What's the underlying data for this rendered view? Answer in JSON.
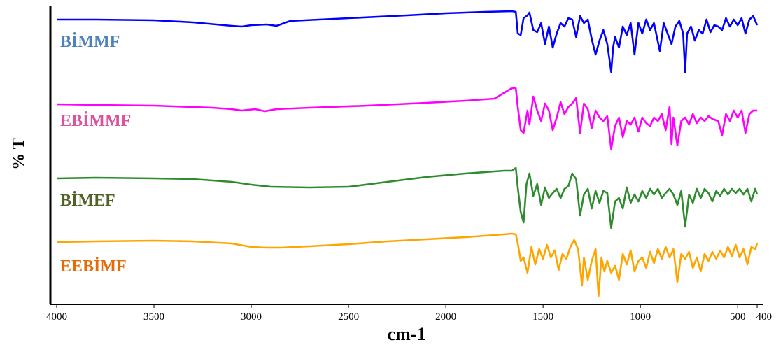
{
  "chart_data": {
    "type": "line",
    "title": "",
    "xlabel": "cm-1",
    "ylabel": "% T",
    "xlim": [
      4000,
      400
    ],
    "x_ticks": [
      4000,
      3500,
      3000,
      2500,
      2000,
      1500,
      1000,
      500,
      400
    ],
    "y_ticks_labeled": false,
    "grid": false,
    "legend": "inline labels at left",
    "series": [
      {
        "name": "BİMMF",
        "label_color": "#4f81bd",
        "line_color": "#0000ff",
        "points": [
          [
            4000,
            20
          ],
          [
            3800,
            20
          ],
          [
            3500,
            21
          ],
          [
            3300,
            24
          ],
          [
            3100,
            29
          ],
          [
            3050,
            30
          ],
          [
            3000,
            28
          ],
          [
            2920,
            27
          ],
          [
            2870,
            29
          ],
          [
            2800,
            22
          ],
          [
            2500,
            18
          ],
          [
            2200,
            14
          ],
          [
            2000,
            11
          ],
          [
            1800,
            9
          ],
          [
            1660,
            8
          ],
          [
            1640,
            9
          ],
          [
            1630,
            40
          ],
          [
            1615,
            42
          ],
          [
            1600,
            18
          ],
          [
            1580,
            14
          ],
          [
            1570,
            10
          ],
          [
            1550,
            35
          ],
          [
            1530,
            38
          ],
          [
            1510,
            25
          ],
          [
            1490,
            55
          ],
          [
            1470,
            30
          ],
          [
            1450,
            60
          ],
          [
            1430,
            40
          ],
          [
            1410,
            25
          ],
          [
            1390,
            30
          ],
          [
            1370,
            18
          ],
          [
            1350,
            20
          ],
          [
            1330,
            45
          ],
          [
            1310,
            15
          ],
          [
            1290,
            25
          ],
          [
            1270,
            20
          ],
          [
            1250,
            48
          ],
          [
            1230,
            70
          ],
          [
            1210,
            50
          ],
          [
            1190,
            35
          ],
          [
            1170,
            55
          ],
          [
            1150,
            95
          ],
          [
            1140,
            60
          ],
          [
            1130,
            45
          ],
          [
            1110,
            60
          ],
          [
            1090,
            30
          ],
          [
            1070,
            42
          ],
          [
            1050,
            25
          ],
          [
            1030,
            70
          ],
          [
            1010,
            25
          ],
          [
            990,
            40
          ],
          [
            970,
            20
          ],
          [
            950,
            35
          ],
          [
            930,
            25
          ],
          [
            900,
            65
          ],
          [
            880,
            25
          ],
          [
            860,
            40
          ],
          [
            840,
            55
          ],
          [
            820,
            30
          ],
          [
            800,
            22
          ],
          [
            780,
            40
          ],
          [
            770,
            95
          ],
          [
            760,
            40
          ],
          [
            740,
            30
          ],
          [
            720,
            50
          ],
          [
            700,
            35
          ],
          [
            680,
            40
          ],
          [
            660,
            20
          ],
          [
            640,
            38
          ],
          [
            620,
            28
          ],
          [
            600,
            30
          ],
          [
            580,
            35
          ],
          [
            560,
            18
          ],
          [
            540,
            30
          ],
          [
            520,
            20
          ],
          [
            500,
            28
          ],
          [
            480,
            18
          ],
          [
            460,
            40
          ],
          [
            440,
            20
          ],
          [
            420,
            15
          ],
          [
            400,
            28
          ]
        ]
      },
      {
        "name": "EBİMMF",
        "label_color": "#d9539f",
        "line_color": "#ff00ff",
        "points": [
          [
            4000,
            141
          ],
          [
            3800,
            142
          ],
          [
            3500,
            143
          ],
          [
            3200,
            146
          ],
          [
            3100,
            148
          ],
          [
            3050,
            150
          ],
          [
            2980,
            148
          ],
          [
            2930,
            151
          ],
          [
            2870,
            148
          ],
          [
            2700,
            146
          ],
          [
            2400,
            143
          ],
          [
            2100,
            139
          ],
          [
            1900,
            136
          ],
          [
            1750,
            133
          ],
          [
            1660,
            118
          ],
          [
            1640,
            118
          ],
          [
            1630,
            145
          ],
          [
            1615,
            178
          ],
          [
            1600,
            182
          ],
          [
            1580,
            150
          ],
          [
            1570,
            170
          ],
          [
            1550,
            130
          ],
          [
            1530,
            150
          ],
          [
            1510,
            165
          ],
          [
            1490,
            140
          ],
          [
            1470,
            150
          ],
          [
            1450,
            178
          ],
          [
            1430,
            160
          ],
          [
            1410,
            138
          ],
          [
            1390,
            155
          ],
          [
            1370,
            145
          ],
          [
            1350,
            140
          ],
          [
            1330,
            132
          ],
          [
            1310,
            182
          ],
          [
            1290,
            140
          ],
          [
            1270,
            148
          ],
          [
            1250,
            175
          ],
          [
            1230,
            150
          ],
          [
            1210,
            160
          ],
          [
            1190,
            165
          ],
          [
            1170,
            158
          ],
          [
            1150,
            205
          ],
          [
            1130,
            172
          ],
          [
            1110,
            160
          ],
          [
            1090,
            188
          ],
          [
            1070,
            165
          ],
          [
            1050,
            170
          ],
          [
            1030,
            160
          ],
          [
            1010,
            180
          ],
          [
            990,
            160
          ],
          [
            970,
            168
          ],
          [
            950,
            172
          ],
          [
            930,
            160
          ],
          [
            910,
            165
          ],
          [
            890,
            155
          ],
          [
            870,
            178
          ],
          [
            850,
            145
          ],
          [
            840,
            198
          ],
          [
            830,
            160
          ],
          [
            810,
            200
          ],
          [
            790,
            165
          ],
          [
            770,
            160
          ],
          [
            750,
            170
          ],
          [
            730,
            155
          ],
          [
            710,
            168
          ],
          [
            690,
            160
          ],
          [
            670,
            165
          ],
          [
            650,
            158
          ],
          [
            630,
            162
          ],
          [
            600,
            165
          ],
          [
            580,
            185
          ],
          [
            560,
            155
          ],
          [
            540,
            165
          ],
          [
            520,
            150
          ],
          [
            500,
            160
          ],
          [
            480,
            150
          ],
          [
            460,
            182
          ],
          [
            440,
            155
          ],
          [
            420,
            150
          ],
          [
            400,
            150
          ]
        ]
      },
      {
        "name": "BİMEF",
        "label_color": "#4f6228",
        "line_color": "#2e8b2e",
        "points": [
          [
            4000,
            247
          ],
          [
            3800,
            246
          ],
          [
            3500,
            247
          ],
          [
            3300,
            248
          ],
          [
            3100,
            252
          ],
          [
            3000,
            256
          ],
          [
            2900,
            259
          ],
          [
            2700,
            260
          ],
          [
            2500,
            259
          ],
          [
            2300,
            252
          ],
          [
            2100,
            245
          ],
          [
            1900,
            240
          ],
          [
            1700,
            236
          ],
          [
            1660,
            236
          ],
          [
            1640,
            232
          ],
          [
            1630,
            260
          ],
          [
            1615,
            295
          ],
          [
            1600,
            310
          ],
          [
            1585,
            255
          ],
          [
            1570,
            240
          ],
          [
            1550,
            272
          ],
          [
            1530,
            255
          ],
          [
            1510,
            285
          ],
          [
            1490,
            260
          ],
          [
            1470,
            275
          ],
          [
            1450,
            268
          ],
          [
            1430,
            262
          ],
          [
            1410,
            275
          ],
          [
            1390,
            262
          ],
          [
            1370,
            258
          ],
          [
            1350,
            240
          ],
          [
            1330,
            248
          ],
          [
            1310,
            300
          ],
          [
            1290,
            270
          ],
          [
            1270,
            262
          ],
          [
            1250,
            290
          ],
          [
            1230,
            265
          ],
          [
            1210,
            282
          ],
          [
            1190,
            265
          ],
          [
            1170,
            268
          ],
          [
            1150,
            318
          ],
          [
            1130,
            280
          ],
          [
            1110,
            275
          ],
          [
            1090,
            290
          ],
          [
            1070,
            260
          ],
          [
            1050,
            282
          ],
          [
            1030,
            270
          ],
          [
            1010,
            280
          ],
          [
            990,
            265
          ],
          [
            970,
            275
          ],
          [
            950,
            262
          ],
          [
            930,
            270
          ],
          [
            910,
            262
          ],
          [
            890,
            275
          ],
          [
            870,
            268
          ],
          [
            850,
            262
          ],
          [
            830,
            270
          ],
          [
            810,
            285
          ],
          [
            790,
            265
          ],
          [
            770,
            316
          ],
          [
            750,
            270
          ],
          [
            730,
            282
          ],
          [
            710,
            262
          ],
          [
            690,
            275
          ],
          [
            670,
            262
          ],
          [
            650,
            268
          ],
          [
            630,
            280
          ],
          [
            610,
            265
          ],
          [
            590,
            272
          ],
          [
            570,
            262
          ],
          [
            550,
            270
          ],
          [
            530,
            262
          ],
          [
            510,
            268
          ],
          [
            490,
            262
          ],
          [
            470,
            270
          ],
          [
            450,
            262
          ],
          [
            430,
            280
          ],
          [
            410,
            262
          ],
          [
            400,
            270
          ]
        ]
      },
      {
        "name": "EEBİMF",
        "label_color": "#e36c09",
        "line_color": "#ffa500",
        "points": [
          [
            4000,
            338
          ],
          [
            3800,
            337
          ],
          [
            3500,
            336
          ],
          [
            3300,
            337
          ],
          [
            3100,
            340
          ],
          [
            3000,
            345
          ],
          [
            2920,
            346
          ],
          [
            2850,
            346
          ],
          [
            2700,
            344
          ],
          [
            2500,
            341
          ],
          [
            2300,
            337
          ],
          [
            2100,
            334
          ],
          [
            1900,
            331
          ],
          [
            1750,
            328
          ],
          [
            1660,
            326
          ],
          [
            1640,
            327
          ],
          [
            1630,
            340
          ],
          [
            1615,
            365
          ],
          [
            1600,
            360
          ],
          [
            1580,
            382
          ],
          [
            1560,
            345
          ],
          [
            1540,
            370
          ],
          [
            1520,
            348
          ],
          [
            1500,
            362
          ],
          [
            1480,
            342
          ],
          [
            1460,
            360
          ],
          [
            1440,
            350
          ],
          [
            1420,
            378
          ],
          [
            1400,
            355
          ],
          [
            1380,
            362
          ],
          [
            1360,
            345
          ],
          [
            1340,
            335
          ],
          [
            1320,
            348
          ],
          [
            1300,
            400
          ],
          [
            1290,
            360
          ],
          [
            1270,
            392
          ],
          [
            1250,
            365
          ],
          [
            1230,
            348
          ],
          [
            1215,
            415
          ],
          [
            1200,
            360
          ],
          [
            1185,
            380
          ],
          [
            1170,
            365
          ],
          [
            1150,
            382
          ],
          [
            1130,
            372
          ],
          [
            1110,
            392
          ],
          [
            1090,
            355
          ],
          [
            1070,
            370
          ],
          [
            1050,
            350
          ],
          [
            1030,
            380
          ],
          [
            1010,
            365
          ],
          [
            990,
            360
          ],
          [
            970,
            375
          ],
          [
            950,
            352
          ],
          [
            930,
            368
          ],
          [
            910,
            348
          ],
          [
            890,
            362
          ],
          [
            870,
            345
          ],
          [
            850,
            360
          ],
          [
            830,
            348
          ],
          [
            810,
            395
          ],
          [
            790,
            355
          ],
          [
            770,
            362
          ],
          [
            750,
            352
          ],
          [
            730,
            375
          ],
          [
            710,
            360
          ],
          [
            690,
            380
          ],
          [
            670,
            355
          ],
          [
            650,
            365
          ],
          [
            630,
            352
          ],
          [
            610,
            362
          ],
          [
            590,
            350
          ],
          [
            570,
            360
          ],
          [
            550,
            345
          ],
          [
            530,
            358
          ],
          [
            510,
            342
          ],
          [
            490,
            360
          ],
          [
            470,
            348
          ],
          [
            450,
            370
          ],
          [
            430,
            345
          ],
          [
            410,
            348
          ],
          [
            400,
            340
          ]
        ]
      }
    ]
  }
}
